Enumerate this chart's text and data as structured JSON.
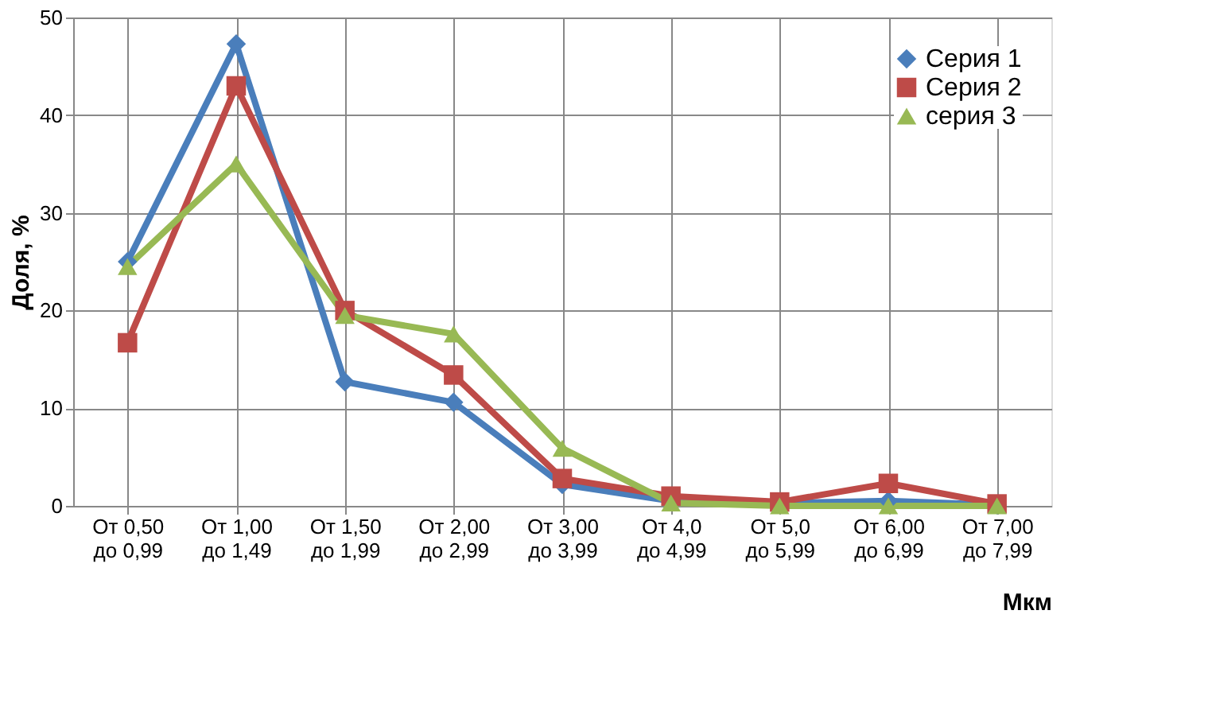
{
  "chart_data": {
    "type": "line",
    "xlabel": "Мкм",
    "ylabel": "Доля, %",
    "categories": [
      "От 0,50\nдо 0,99",
      "От 1,00\nдо 1,49",
      "От 1,50\nдо 1,99",
      "От 2,00\nдо 2,99",
      "От 3,00\nдо 3,99",
      "От 4,0\nдо 4,99",
      "От 5,0\nдо 5,99",
      "От 6,00\nдо 6,99",
      "От 7,00\nдо 7,99"
    ],
    "series": [
      {
        "name": "Серия 1",
        "color": "#4a7ebb",
        "marker": "diamond",
        "values": [
          25,
          47.3,
          12.7,
          10.6,
          2.2,
          0.5,
          0.3,
          0.5,
          0.1
        ]
      },
      {
        "name": "Серия 2",
        "color": "#be4b48",
        "marker": "square",
        "values": [
          16.7,
          43,
          20,
          13.4,
          2.8,
          1,
          0.4,
          2.3,
          0.2
        ]
      },
      {
        "name": "серия 3",
        "color": "#98b954",
        "marker": "triangle",
        "values": [
          24.5,
          35,
          19.5,
          17.6,
          5.9,
          0.3,
          0,
          0,
          0
        ]
      }
    ],
    "ylim": [
      0,
      50
    ],
    "yticks": [
      0,
      10,
      20,
      30,
      40,
      50
    ],
    "grid": true,
    "legend": "top right",
    "line_style": "solid"
  }
}
